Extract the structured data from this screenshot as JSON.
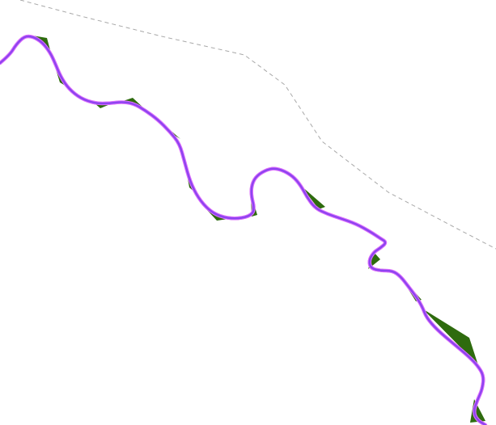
{
  "map": {
    "background_color": "#ffffff",
    "layers": [
      {
        "name": "river-polygon",
        "color": "#2e6b0e"
      },
      {
        "name": "river-centerline",
        "color": "#8e44f0",
        "halo_color": "#e070ff"
      },
      {
        "name": "boundary-dashed",
        "color": "#a8a8a8"
      }
    ]
  }
}
